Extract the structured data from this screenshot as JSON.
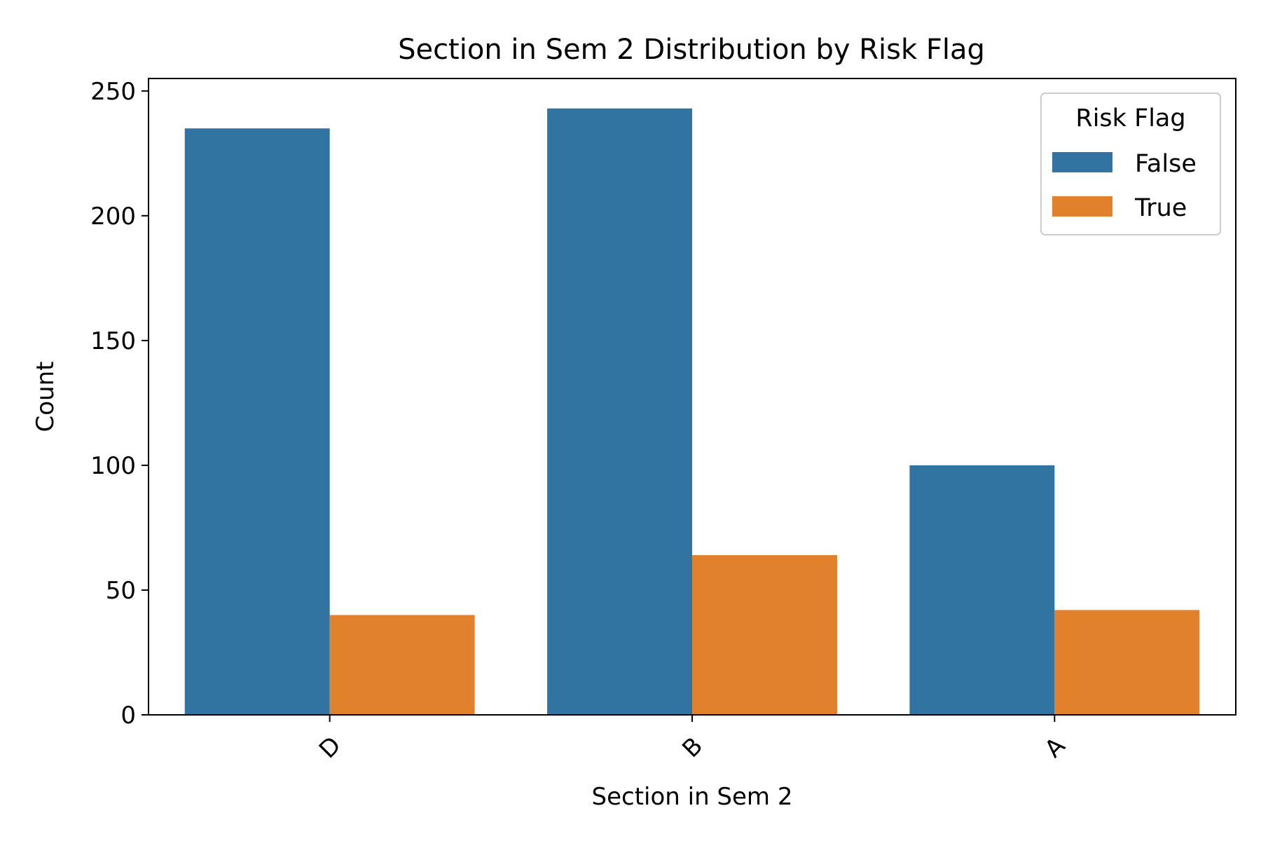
{
  "chart_data": {
    "type": "bar",
    "title": "Section in Sem 2 Distribution by Risk Flag",
    "xlabel": "Section in Sem 2",
    "ylabel": "Count",
    "categories": [
      "D",
      "B",
      "A"
    ],
    "series": [
      {
        "name": "False",
        "values": [
          235,
          243,
          100
        ],
        "color": "#3274a1"
      },
      {
        "name": "True",
        "values": [
          40,
          64,
          42
        ],
        "color": "#e1812c"
      }
    ],
    "ylim": [
      0,
      255
    ],
    "yticks": [
      0,
      50,
      100,
      150,
      200,
      250
    ],
    "legend": {
      "title": "Risk Flag",
      "placement": "top-right"
    },
    "grid": false
  }
}
